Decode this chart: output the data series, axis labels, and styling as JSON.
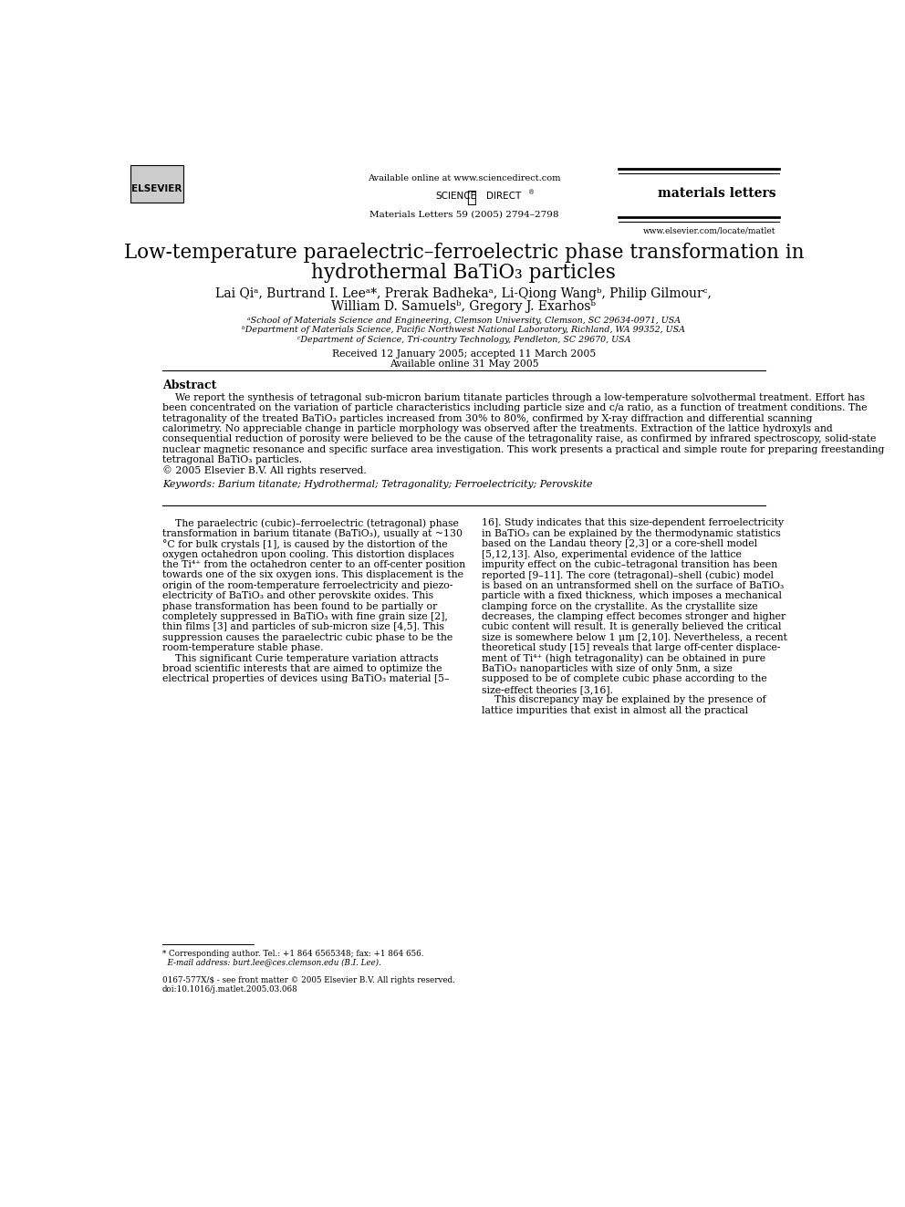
{
  "bg_color": "#ffffff",
  "page_width": 9.92,
  "page_height": 13.23,
  "header": {
    "available_online": "Available online at www.sciencedirect.com",
    "journal_name": "materials letters",
    "citation": "Materials Letters 59 (2005) 2794–2798",
    "url": "www.elsevier.com/locate/matlet"
  },
  "title_line1": "Low-temperature paraelectric–ferroelectric phase transformation in",
  "title_line2": "hydrothermal BaTiO₃ particles",
  "authors_line1": "Lai Qiᵃ, Burtrand I. Leeᵃ*, Prerak Badhekaᵃ, Li-Qiong Wangᵇ, Philip Gilmourᶜ,",
  "authors_line2": "William D. Samuelsᵇ, Gregory J. Exarhosᵇ",
  "affil1": "ᵃSchool of Materials Science and Engineering, Clemson University, Clemson, SC 29634-0971, USA",
  "affil2": "ᵇDepartment of Materials Science, Pacific Northwest National Laboratory, Richland, WA 99352, USA",
  "affil3": "ᶜDepartment of Science, Tri-country Technology, Pendleton, SC 29670, USA",
  "received": "Received 12 January 2005; accepted 11 March 2005",
  "available": "Available online 31 May 2005",
  "abstract_title": "Abstract",
  "abstract_lines": [
    "    We report the synthesis of tetragonal sub-micron barium titanate particles through a low-temperature solvothermal treatment. Effort has",
    "been concentrated on the variation of particle characteristics including particle size and c/a ratio, as a function of treatment conditions. The",
    "tetragonality of the treated BaTiO₃ particles increased from 30% to 80%, confirmed by X-ray diffraction and differential scanning",
    "calorimetry. No appreciable change in particle morphology was observed after the treatments. Extraction of the lattice hydroxyls and",
    "consequential reduction of porosity were believed to be the cause of the tetragonality raise, as confirmed by infrared spectroscopy, solid-state",
    "nuclear magnetic resonance and specific surface area investigation. This work presents a practical and simple route for preparing freestanding",
    "tetragonal BaTiO₃ particles.",
    "© 2005 Elsevier B.V. All rights reserved."
  ],
  "keywords": "Keywords: Barium titanate; Hydrothermal; Tetragonality; Ferroelectricity; Perovskite",
  "col1_lines": [
    "    The paraelectric (cubic)–ferroelectric (tetragonal) phase",
    "transformation in barium titanate (BaTiO₃), usually at ~130",
    "°C for bulk crystals [1], is caused by the distortion of the",
    "oxygen octahedron upon cooling. This distortion displaces",
    "the Ti⁴⁺ from the octahedron center to an off-center position",
    "towards one of the six oxygen ions. This displacement is the",
    "origin of the room-temperature ferroelectricity and piezo-",
    "electricity of BaTiO₃ and other perovskite oxides. This",
    "phase transformation has been found to be partially or",
    "completely suppressed in BaTiO₃ with fine grain size [2],",
    "thin films [3] and particles of sub-micron size [4,5]. This",
    "suppression causes the paraelectric cubic phase to be the",
    "room-temperature stable phase.",
    "    This significant Curie temperature variation attracts",
    "broad scientific interests that are aimed to optimize the",
    "electrical properties of devices using BaTiO₃ material [5–"
  ],
  "col2_lines": [
    "16]. Study indicates that this size-dependent ferroelectricity",
    "in BaTiO₃ can be explained by the thermodynamic statistics",
    "based on the Landau theory [2,3] or a core-shell model",
    "[5,12,13]. Also, experimental evidence of the lattice",
    "impurity effect on the cubic–tetragonal transition has been",
    "reported [9–11]. The core (tetragonal)–shell (cubic) model",
    "is based on an untransformed shell on the surface of BaTiO₃",
    "particle with a fixed thickness, which imposes a mechanical",
    "clamping force on the crystallite. As the crystallite size",
    "decreases, the clamping effect becomes stronger and higher",
    "cubic content will result. It is generally believed the critical",
    "size is somewhere below 1 μm [2,10]. Nevertheless, a recent",
    "theoretical study [15] reveals that large off-center displace-",
    "ment of Ti⁴⁺ (high tetragonality) can be obtained in pure",
    "BaTiO₃ nanoparticles with size of only 5nm, a size",
    "supposed to be of complete cubic phase according to the",
    "size-effect theories [3,16].",
    "    This discrepancy may be explained by the presence of",
    "lattice impurities that exist in almost all the practical"
  ],
  "footnote1": "* Corresponding author. Tel.: +1 864 6565348; fax: +1 864 656.",
  "footnote2": "  E-mail address: burt.lee@ces.clemson.edu (B.I. Lee).",
  "footnote3": "0167-577X/$ - see front matter © 2005 Elsevier B.V. All rights reserved.",
  "footnote4": "doi:10.1016/j.matlet.2005.03.068"
}
